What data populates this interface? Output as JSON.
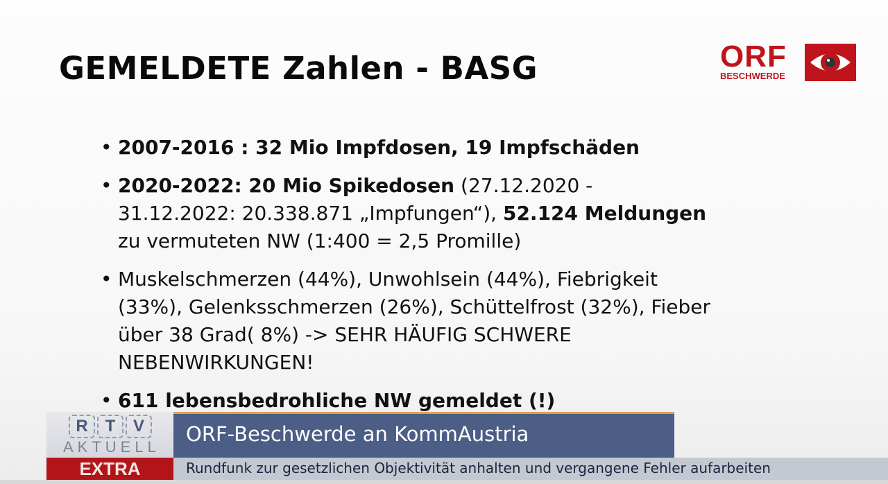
{
  "slide": {
    "title": "GEMELDETE Zahlen - BASG",
    "bullets": [
      {
        "bold": "2007-2016 : 32 Mio Impfdosen, 19 Impfschäden",
        "rest": ""
      },
      {
        "bold": "2020-2022: 20 Mio Spikedosen",
        "rest": " (27.12.2020 - 31.12.2022: 20.338.871 „Impfungen“), ",
        "bold2": "52.124 Meldungen",
        "rest2": " zu vermuteten NW (1:400 = 2,5 Promille)"
      },
      {
        "bold": "",
        "rest": "Muskelschmerzen (44%), Unwohlsein (44%), Fiebrigkeit (33%), Gelenksschmerzen (26%), Schüttelfrost (32%), Fieber über 38 Grad( 8%) -> SEHR HÄUFIG SCHWERE NEBENWIRKUNGEN!"
      },
      {
        "bold": "611 lebensbedrohliche NW gemeldet (!)",
        "rest": ""
      }
    ]
  },
  "logo": {
    "orf": "ORF",
    "sub": "BESCHWERDE",
    "icon": "eye-icon",
    "color": "#c0141c"
  },
  "lower_third": {
    "channel_letters": [
      "R",
      "T",
      "V"
    ],
    "channel_sub": "AKTUELL",
    "headline": "ORF-Beschwerde an KommAustria",
    "tag": "EXTRA",
    "ticker": "Rundfunk zur gesetzlichen Objektivität anhalten und vergangene Fehler aufarbeiten"
  }
}
